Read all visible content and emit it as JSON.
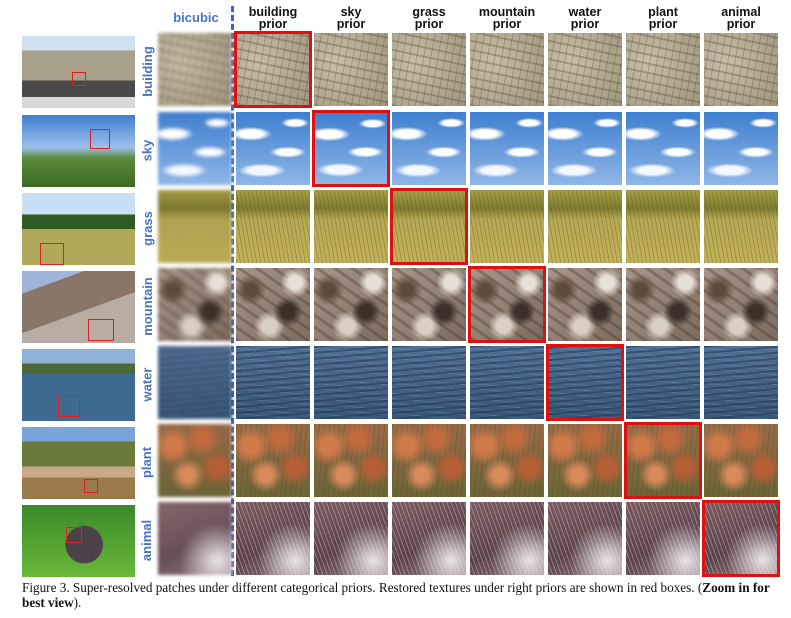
{
  "header": {
    "bicubic_label": "bicubic",
    "priors": [
      {
        "key": "building",
        "line1": "building",
        "line2": "prior"
      },
      {
        "key": "sky",
        "line1": "sky",
        "line2": "prior"
      },
      {
        "key": "grass",
        "line1": "grass",
        "line2": "prior"
      },
      {
        "key": "mountain",
        "line1": "mountain",
        "line2": "prior"
      },
      {
        "key": "water",
        "line1": "water",
        "line2": "prior"
      },
      {
        "key": "plant",
        "line1": "plant",
        "line2": "prior"
      },
      {
        "key": "animal",
        "line1": "animal",
        "line2": "prior"
      }
    ]
  },
  "rows": [
    {
      "label": "building",
      "texture": "building"
    },
    {
      "label": "sky",
      "texture": "sky"
    },
    {
      "label": "grass",
      "texture": "grass"
    },
    {
      "label": "mountain",
      "texture": "mountain"
    },
    {
      "label": "water",
      "texture": "water"
    },
    {
      "label": "plant",
      "texture": "plant"
    },
    {
      "label": "animal",
      "texture": "animal"
    }
  ],
  "caption": {
    "text": "Figure 3. Super-resolved patches under different categorical priors. Restored textures under right priors are shown in red boxes. (",
    "bold": "Zoom in for best view",
    "end": ")."
  },
  "colors": {
    "label_blue": "#4a72c4",
    "highlight_red": "#e01010",
    "divider_blue": "#3a64c8"
  }
}
